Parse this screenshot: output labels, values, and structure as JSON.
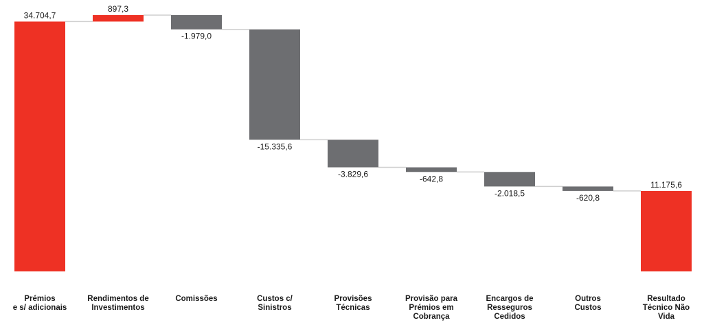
{
  "chart_data": {
    "type": "waterfall",
    "categories": [
      "Prémios\ne s/ adicionais",
      "Rendimentos de\nInvestimentos",
      "Comissões",
      "Custos c/\nSinistros",
      "Provisões\nTécnicas",
      "Provisão para\nPrémios em\nCobrança",
      "Encargos de\nResseguros\nCedidos",
      "Outros\nCustos",
      "Resultado\nTécnico Não\nVida"
    ],
    "values": [
      34704.7,
      897.3,
      -1979.0,
      -15335.6,
      -3829.6,
      -642.8,
      -2018.5,
      -620.8,
      11175.6
    ],
    "value_labels": [
      "34.704,7",
      "897,3",
      "-1.979,0",
      "-15.335,6",
      "-3.829,6",
      "-642,8",
      "-2.018,5",
      "-620,8",
      "11.175,6"
    ],
    "measure": [
      "relative",
      "relative",
      "relative",
      "relative",
      "relative",
      "relative",
      "relative",
      "relative",
      "total"
    ],
    "colors": [
      "#ee3124",
      "#ee3124",
      "#6d6e71",
      "#6d6e71",
      "#6d6e71",
      "#6d6e71",
      "#6d6e71",
      "#6d6e71",
      "#ee3124"
    ]
  }
}
